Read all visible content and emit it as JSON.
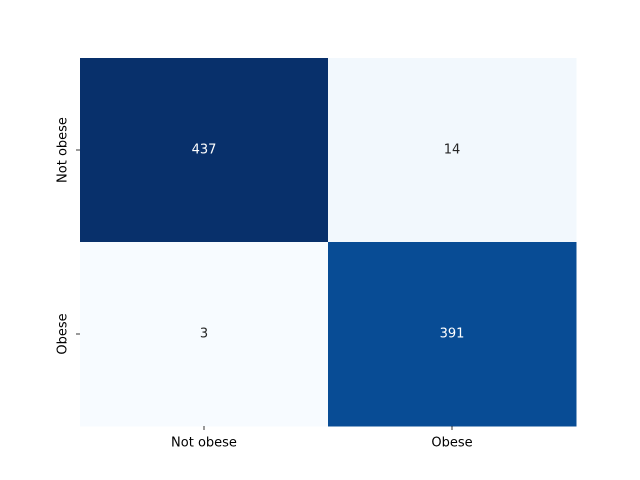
{
  "chart_data": {
    "type": "heatmap",
    "title": "",
    "xlabel": "",
    "ylabel": "",
    "x_categories": [
      "Not obese",
      "Obese"
    ],
    "y_categories": [
      "Not obese",
      "Obese"
    ],
    "values": [
      [
        437,
        14
      ],
      [
        3,
        391
      ]
    ],
    "colormap": "Blues",
    "color_low": "#f7fbff",
    "color_high": "#08306b",
    "text_color_dark_cell": "#ffffff",
    "text_color_light_cell": "#262626",
    "colorbar": false,
    "grid": false
  }
}
